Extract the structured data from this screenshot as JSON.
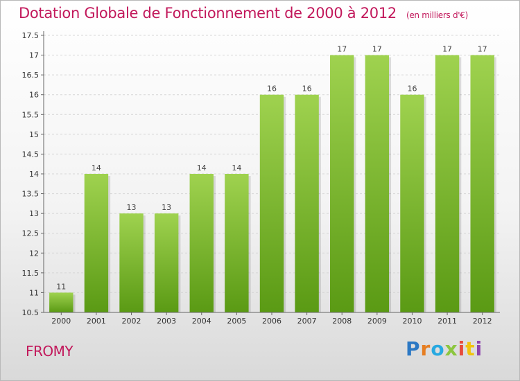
{
  "title": "Dotation Globale de Fonctionnement de 2000 à 2012",
  "subtitle": "(en milliers d'€)",
  "place": "FROMY",
  "brand": {
    "letters": [
      "P",
      "r",
      "o",
      "x",
      "i",
      "t",
      "i"
    ]
  },
  "colors": {
    "bar_top": "#9fd24f",
    "bar_bottom": "#5a9a14",
    "title": "#c2185b"
  },
  "chart_data": {
    "type": "bar",
    "categories": [
      "2000",
      "2001",
      "2002",
      "2003",
      "2004",
      "2005",
      "2006",
      "2007",
      "2008",
      "2009",
      "2010",
      "2011",
      "2012"
    ],
    "values": [
      11,
      14,
      13,
      13,
      14,
      14,
      16,
      16,
      17,
      17,
      16,
      17,
      17
    ],
    "ylim": [
      10.5,
      17.5
    ],
    "yticks": [
      "10.5",
      "11",
      "11.5",
      "12",
      "12.5",
      "13",
      "13.5",
      "14",
      "14.5",
      "15",
      "15.5",
      "16",
      "16.5",
      "17",
      "17.5"
    ],
    "grid": true,
    "legend": "none"
  }
}
